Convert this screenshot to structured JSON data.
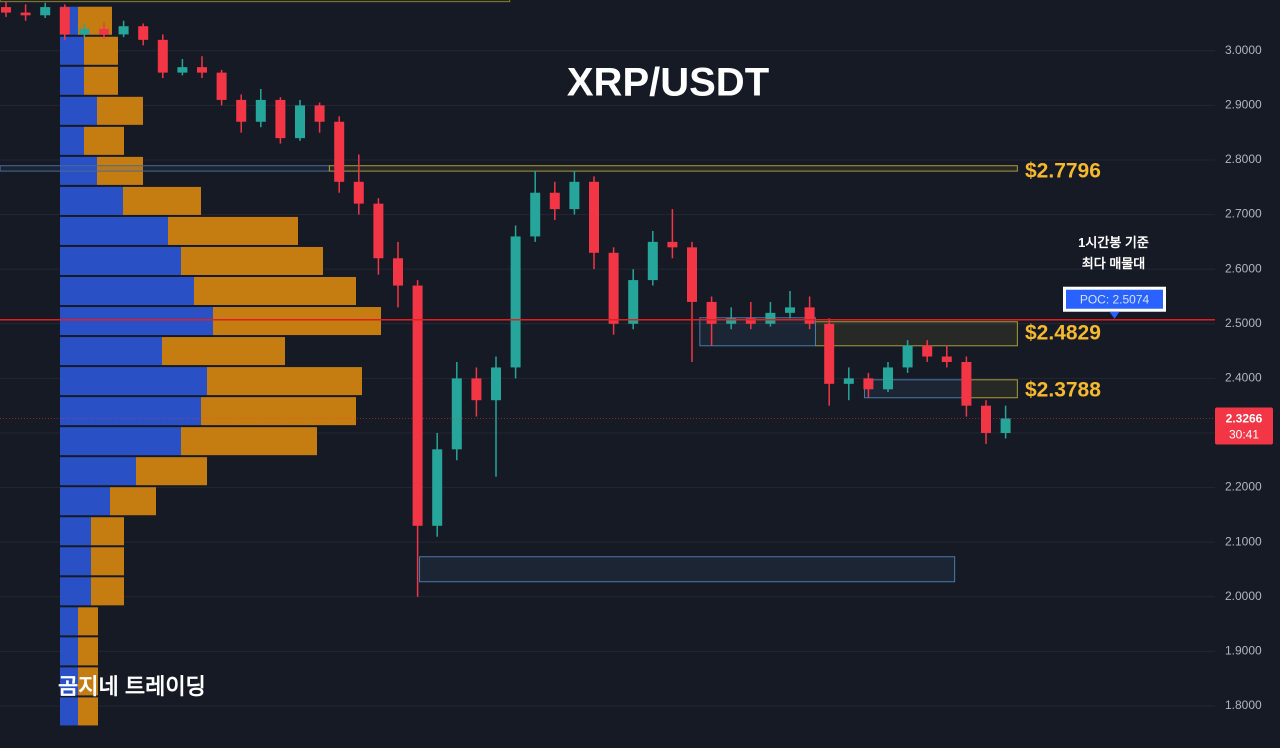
{
  "chart_data": {
    "type": "candlestick",
    "title": "XRP/USDT",
    "watermark": "곰지네 트레이딩",
    "open": [
      3.08,
      3.07,
      3.065,
      3.08,
      3.03,
      3.04,
      3.03,
      3.045,
      3.02,
      2.96,
      2.97,
      2.96,
      2.91,
      2.87,
      2.91,
      2.84,
      2.9,
      2.87,
      2.76,
      2.72,
      2.62,
      2.57,
      2.13,
      2.27,
      2.4,
      2.36,
      2.42,
      2.66,
      2.74,
      2.71,
      2.76,
      2.63,
      2.5,
      2.58,
      2.65,
      2.64,
      2.54,
      2.5,
      2.51,
      2.5,
      2.52,
      2.53,
      2.5,
      2.39,
      2.4,
      2.38,
      2.42,
      2.46,
      2.44,
      2.43,
      2.35,
      2.3
    ],
    "high": [
      3.09,
      3.085,
      3.088,
      3.085,
      3.05,
      3.052,
      3.055,
      3.05,
      3.03,
      2.985,
      2.99,
      2.965,
      2.92,
      2.93,
      2.915,
      2.91,
      2.905,
      2.88,
      2.81,
      2.73,
      2.65,
      2.58,
      2.3,
      2.43,
      2.42,
      2.44,
      2.68,
      2.78,
      2.76,
      2.78,
      2.77,
      2.64,
      2.6,
      2.67,
      2.71,
      2.65,
      2.55,
      2.53,
      2.54,
      2.54,
      2.56,
      2.55,
      2.51,
      2.42,
      2.41,
      2.43,
      2.47,
      2.47,
      2.46,
      2.44,
      2.36,
      2.35
    ],
    "low": [
      3.062,
      3.055,
      3.06,
      3.02,
      3.025,
      3.022,
      3.025,
      3.01,
      2.95,
      2.955,
      2.95,
      2.9,
      2.85,
      2.86,
      2.83,
      2.835,
      2.85,
      2.74,
      2.7,
      2.59,
      2.53,
      2.0,
      2.11,
      2.25,
      2.33,
      2.22,
      2.4,
      2.65,
      2.69,
      2.7,
      2.6,
      2.48,
      2.49,
      2.57,
      2.62,
      2.43,
      2.46,
      2.49,
      2.49,
      2.495,
      2.51,
      2.49,
      2.35,
      2.36,
      2.365,
      2.375,
      2.41,
      2.43,
      2.42,
      2.33,
      2.28,
      2.29
    ],
    "close": [
      3.07,
      3.065,
      3.08,
      3.03,
      3.04,
      3.03,
      3.045,
      3.02,
      2.96,
      2.97,
      2.96,
      2.91,
      2.87,
      2.91,
      2.84,
      2.9,
      2.87,
      2.76,
      2.72,
      2.62,
      2.57,
      2.13,
      2.27,
      2.4,
      2.36,
      2.42,
      2.66,
      2.74,
      2.71,
      2.76,
      2.63,
      2.5,
      2.58,
      2.65,
      2.64,
      2.54,
      2.5,
      2.51,
      2.5,
      2.52,
      2.53,
      2.5,
      2.39,
      2.4,
      2.38,
      2.42,
      2.46,
      2.44,
      2.43,
      2.35,
      2.3,
      2.3266
    ],
    "up_color": "#26a69a",
    "down_color": "#f23645",
    "ylim": [
      1.723,
      3.093
    ],
    "yticks": [
      {
        "value": 1.8,
        "label": "1.8000"
      },
      {
        "value": 1.9,
        "label": "1.9000"
      },
      {
        "value": 2.0,
        "label": "2.0000"
      },
      {
        "value": 2.1,
        "label": "2.1000"
      },
      {
        "value": 2.2,
        "label": "2.2000"
      },
      {
        "value": 2.3,
        "label": "2.3000"
      },
      {
        "value": 2.4,
        "label": "2.4000"
      },
      {
        "value": 2.5,
        "label": "2.5000"
      },
      {
        "value": 2.6,
        "label": "2.6000"
      },
      {
        "value": 2.7,
        "label": "2.7000"
      },
      {
        "value": 2.8,
        "label": "2.8000"
      },
      {
        "value": 2.9,
        "label": "2.9000"
      },
      {
        "value": 3.0,
        "label": "3.0000"
      }
    ],
    "grid": true,
    "volume_profile": {
      "bin_prices": [
        3.055,
        3.0,
        2.945,
        2.89,
        2.835,
        2.78,
        2.725,
        2.67,
        2.615,
        2.56,
        2.505,
        2.45,
        2.395,
        2.34,
        2.285,
        2.23,
        2.175,
        2.12,
        2.065,
        2.01,
        1.955,
        1.9,
        1.845,
        1.79
      ],
      "buy": [
        18,
        24,
        24,
        37,
        24,
        37,
        63,
        108,
        121,
        134,
        153,
        102,
        147,
        141,
        121,
        76,
        50,
        31,
        31,
        31,
        18,
        18,
        18,
        18
      ],
      "sell": [
        34,
        34,
        34,
        46,
        40,
        46,
        78,
        130,
        142,
        162,
        168,
        123,
        155,
        155,
        136,
        71,
        46,
        33,
        33,
        33,
        20,
        20,
        20,
        20
      ],
      "xlim": [
        0,
        320
      ],
      "buy_color": "#2b57d6",
      "sell_color": "#d8870f"
    },
    "zones": [
      {
        "top": 3.095,
        "bottom": 3.09,
        "from": -0.3,
        "to": 25.7,
        "color": "#8a7f2e"
      },
      {
        "top": 2.7895,
        "bottom": 2.7796,
        "from": -0.3,
        "to": 16.5,
        "color": "#4a6a90"
      },
      {
        "top": 2.7895,
        "bottom": 2.7796,
        "from": 16.5,
        "to": 51.6,
        "color": "#a89a3a"
      },
      {
        "top": 2.5037,
        "bottom": 2.4597,
        "from": 41.3,
        "to": 51.6,
        "color": "#a89a3a"
      },
      {
        "top": 2.3974,
        "bottom": 2.3645,
        "from": 48.9,
        "to": 51.6,
        "color": "#a89a3a"
      },
      {
        "top": 2.511,
        "bottom": 2.4597,
        "from": 35.4,
        "to": 41.3,
        "color": "#4a7aa8"
      },
      {
        "top": 2.3974,
        "bottom": 2.3645,
        "from": 43.8,
        "to": 48.9,
        "color": "#4a7aa8"
      },
      {
        "top": 2.0733,
        "bottom": 2.0275,
        "from": 21.1,
        "to": 48.4,
        "color": "#4a7aa8"
      }
    ],
    "levels": [
      {
        "value": 2.7796,
        "label": "$2.7796"
      },
      {
        "value": 2.4829,
        "label": "$2.4829"
      },
      {
        "value": 2.3788,
        "label": "$2.3788"
      }
    ],
    "poc": {
      "value": 2.5074,
      "label": "POC: 2.5074",
      "note": [
        "1시간봉 기준",
        "최다 매물대"
      ],
      "color": "#e02020"
    },
    "last_price": {
      "value": 2.3266,
      "label": "2.3266",
      "countdown": "30:41"
    }
  }
}
